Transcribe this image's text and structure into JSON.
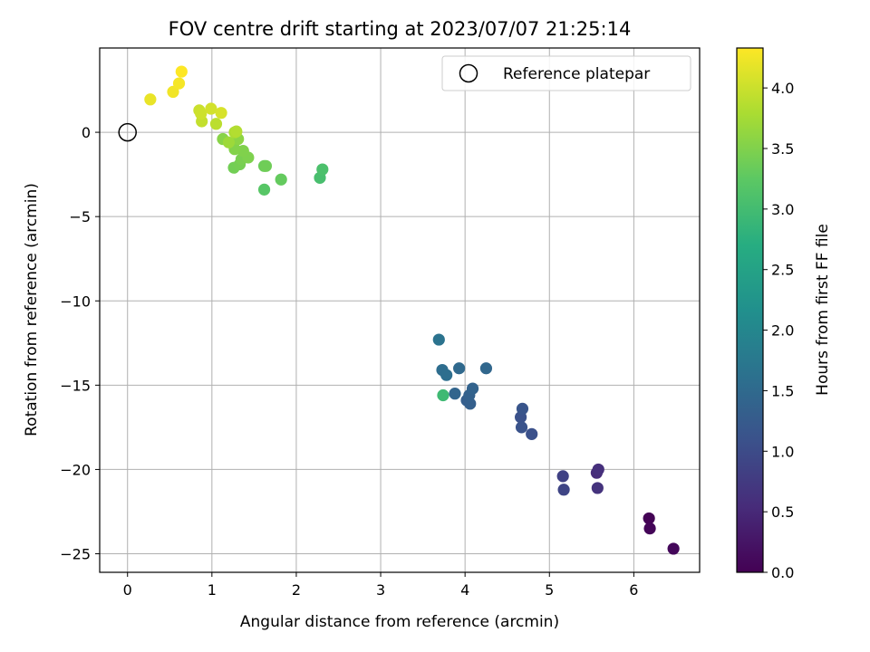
{
  "chart_data": {
    "type": "scatter",
    "title": "FOV centre drift starting at 2023/07/07 21:25:14",
    "xlabel": "Angular distance from reference (arcmin)",
    "ylabel": "Rotation from reference (arcmin)",
    "xlim": [
      -0.33,
      6.78
    ],
    "ylim": [
      -26.1,
      5.0
    ],
    "xticks": [
      0,
      1,
      2,
      3,
      4,
      5,
      6
    ],
    "yticks": [
      0,
      -5,
      -10,
      -15,
      -20,
      -25
    ],
    "grid": true,
    "legend": {
      "placement": "top-right",
      "entries": [
        "Reference platepar"
      ]
    },
    "reference_point": {
      "label": "Reference platepar",
      "x": 0,
      "y": 0
    },
    "colorbar": {
      "label": "Hours from first FF file",
      "range": [
        0.0,
        4.33
      ],
      "ticks": [
        "0.0",
        "0.5",
        "1.0",
        "1.5",
        "2.0",
        "2.5",
        "3.0",
        "3.5",
        "4.0"
      ],
      "colormap": "viridis"
    },
    "series": [
      {
        "points": [
          {
            "x": 6.18,
            "y": -22.9,
            "c": 0.02
          },
          {
            "x": 6.19,
            "y": -23.5,
            "c": 0.05
          },
          {
            "x": 6.47,
            "y": -24.7,
            "c": 0.08
          },
          {
            "x": 5.56,
            "y": -20.2,
            "c": 0.55
          },
          {
            "x": 5.58,
            "y": -20.0,
            "c": 0.6
          },
          {
            "x": 5.57,
            "y": -21.1,
            "c": 0.65
          },
          {
            "x": 5.16,
            "y": -20.4,
            "c": 0.85
          },
          {
            "x": 5.17,
            "y": -21.2,
            "c": 0.9
          },
          {
            "x": 4.66,
            "y": -16.9,
            "c": 1.1
          },
          {
            "x": 4.67,
            "y": -17.5,
            "c": 1.12
          },
          {
            "x": 4.68,
            "y": -16.4,
            "c": 1.15
          },
          {
            "x": 4.79,
            "y": -17.9,
            "c": 1.08
          },
          {
            "x": 4.02,
            "y": -15.9,
            "c": 1.3
          },
          {
            "x": 4.06,
            "y": -16.1,
            "c": 1.32
          },
          {
            "x": 4.05,
            "y": -15.6,
            "c": 1.35
          },
          {
            "x": 4.09,
            "y": -15.2,
            "c": 1.38
          },
          {
            "x": 3.88,
            "y": -15.5,
            "c": 1.42
          },
          {
            "x": 4.25,
            "y": -14.0,
            "c": 1.45
          },
          {
            "x": 3.93,
            "y": -14.0,
            "c": 1.48
          },
          {
            "x": 3.73,
            "y": -14.1,
            "c": 1.55
          },
          {
            "x": 3.78,
            "y": -14.4,
            "c": 1.58
          },
          {
            "x": 3.69,
            "y": -12.3,
            "c": 1.65
          },
          {
            "x": 3.74,
            "y": -15.6,
            "c": 2.95
          },
          {
            "x": 2.28,
            "y": -2.7,
            "c": 3.05
          },
          {
            "x": 2.31,
            "y": -2.2,
            "c": 3.08
          },
          {
            "x": 1.62,
            "y": -3.4,
            "c": 3.2
          },
          {
            "x": 1.82,
            "y": -2.8,
            "c": 3.3
          },
          {
            "x": 1.62,
            "y": -2.0,
            "c": 3.35
          },
          {
            "x": 1.64,
            "y": -2.0,
            "c": 3.38
          },
          {
            "x": 1.26,
            "y": -2.1,
            "c": 3.4
          },
          {
            "x": 1.33,
            "y": -1.9,
            "c": 3.42
          },
          {
            "x": 1.35,
            "y": -1.6,
            "c": 3.45
          },
          {
            "x": 1.43,
            "y": -1.5,
            "c": 3.48
          },
          {
            "x": 1.37,
            "y": -1.1,
            "c": 3.5
          },
          {
            "x": 1.27,
            "y": -1.0,
            "c": 3.52
          },
          {
            "x": 1.13,
            "y": -0.4,
            "c": 3.55
          },
          {
            "x": 1.31,
            "y": -0.4,
            "c": 3.58
          },
          {
            "x": 1.2,
            "y": -0.6,
            "c": 3.7
          },
          {
            "x": 1.27,
            "y": 0.0,
            "c": 3.8
          },
          {
            "x": 1.29,
            "y": 0.05,
            "c": 3.85
          },
          {
            "x": 1.05,
            "y": 0.5,
            "c": 3.9
          },
          {
            "x": 0.88,
            "y": 0.65,
            "c": 3.95
          },
          {
            "x": 0.85,
            "y": 1.3,
            "c": 4.0
          },
          {
            "x": 0.87,
            "y": 1.1,
            "c": 4.02
          },
          {
            "x": 0.99,
            "y": 1.4,
            "c": 4.05
          },
          {
            "x": 1.11,
            "y": 1.15,
            "c": 4.08
          },
          {
            "x": 0.27,
            "y": 1.95,
            "c": 4.2
          },
          {
            "x": 0.54,
            "y": 2.4,
            "c": 4.25
          },
          {
            "x": 0.61,
            "y": 2.9,
            "c": 4.28
          },
          {
            "x": 0.64,
            "y": 3.6,
            "c": 4.33
          }
        ]
      }
    ]
  }
}
